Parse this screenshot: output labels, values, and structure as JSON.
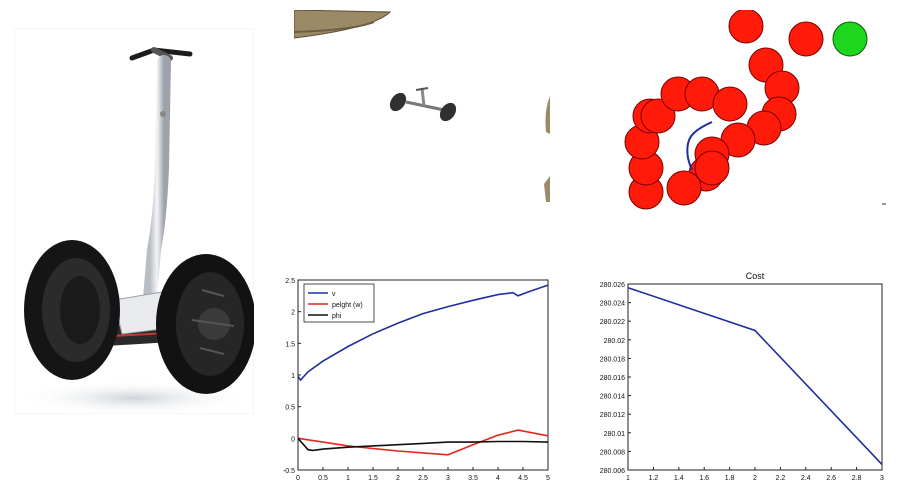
{
  "chart_data": [
    {
      "type": "line",
      "title": "",
      "xlabel": "",
      "ylabel": "",
      "xlim": [
        0,
        5
      ],
      "ylim": [
        -0.5,
        2.5
      ],
      "xticks": [
        "0",
        "0.5",
        "1",
        "1.5",
        "2",
        "2.5",
        "3",
        "3.5",
        "4",
        "4.5",
        "5"
      ],
      "yticks": [
        "-0.5",
        "0",
        "0.5",
        "1",
        "1.5",
        "2",
        "2.5"
      ],
      "legend_position": "top-left",
      "grid": false,
      "series": [
        {
          "name": "v",
          "color": "#1f2fa0",
          "x": [
            0,
            0.05,
            0.2,
            0.5,
            1,
            1.5,
            2,
            2.5,
            3,
            3.5,
            4,
            4.3,
            4.4,
            4.6,
            5
          ],
          "y": [
            0.98,
            0.92,
            1.05,
            1.22,
            1.45,
            1.65,
            1.82,
            1.97,
            2.08,
            2.18,
            2.27,
            2.3,
            2.25,
            2.31,
            2.42
          ]
        },
        {
          "name": "pelght (w)",
          "color": "#e0281e",
          "x": [
            0,
            0.5,
            1,
            1.5,
            2,
            2.5,
            3,
            3.5,
            4,
            4.4,
            5
          ],
          "y": [
            0,
            -0.06,
            -0.12,
            -0.16,
            -0.2,
            -0.23,
            -0.26,
            -0.1,
            0.05,
            0.13,
            0.04
          ]
        },
        {
          "name": "phi",
          "color": "#111111",
          "x": [
            0,
            0.2,
            0.3,
            0.5,
            1,
            1.5,
            2,
            2.5,
            3,
            3.5,
            4,
            4.5,
            5
          ],
          "y": [
            0,
            -0.18,
            -0.19,
            -0.17,
            -0.14,
            -0.12,
            -0.1,
            -0.08,
            -0.06,
            -0.06,
            -0.05,
            -0.05,
            -0.06
          ]
        }
      ]
    },
    {
      "type": "line",
      "title": "Cost",
      "xlabel": "",
      "ylabel": "",
      "xlim": [
        1,
        3
      ],
      "ylim": [
        280.006,
        280.026
      ],
      "xticks": [
        "1",
        "1.2",
        "1.4",
        "1.6",
        "1.8",
        "2",
        "2.2",
        "2.4",
        "2.6",
        "2.8",
        "3"
      ],
      "yticks": [
        "280.026",
        "280.024",
        "280.022",
        "280.02",
        "280.018",
        "280.016",
        "280.014",
        "280.012",
        "280.01",
        "280.008",
        "280.006"
      ],
      "grid": false,
      "series": [
        {
          "color": "#1f2fa0",
          "x": [
            1,
            2,
            3
          ],
          "y": [
            280.0256,
            280.021,
            280.0066
          ]
        }
      ]
    }
  ],
  "images": {
    "photo": "segway-photo",
    "sim3d": "segway-3d-render",
    "sim2d": "obstacle-field-plot"
  },
  "colors": {
    "obstacle": "#ff1a0a",
    "goal": "#1fd61f",
    "trajectory": "#1f2fa0"
  }
}
